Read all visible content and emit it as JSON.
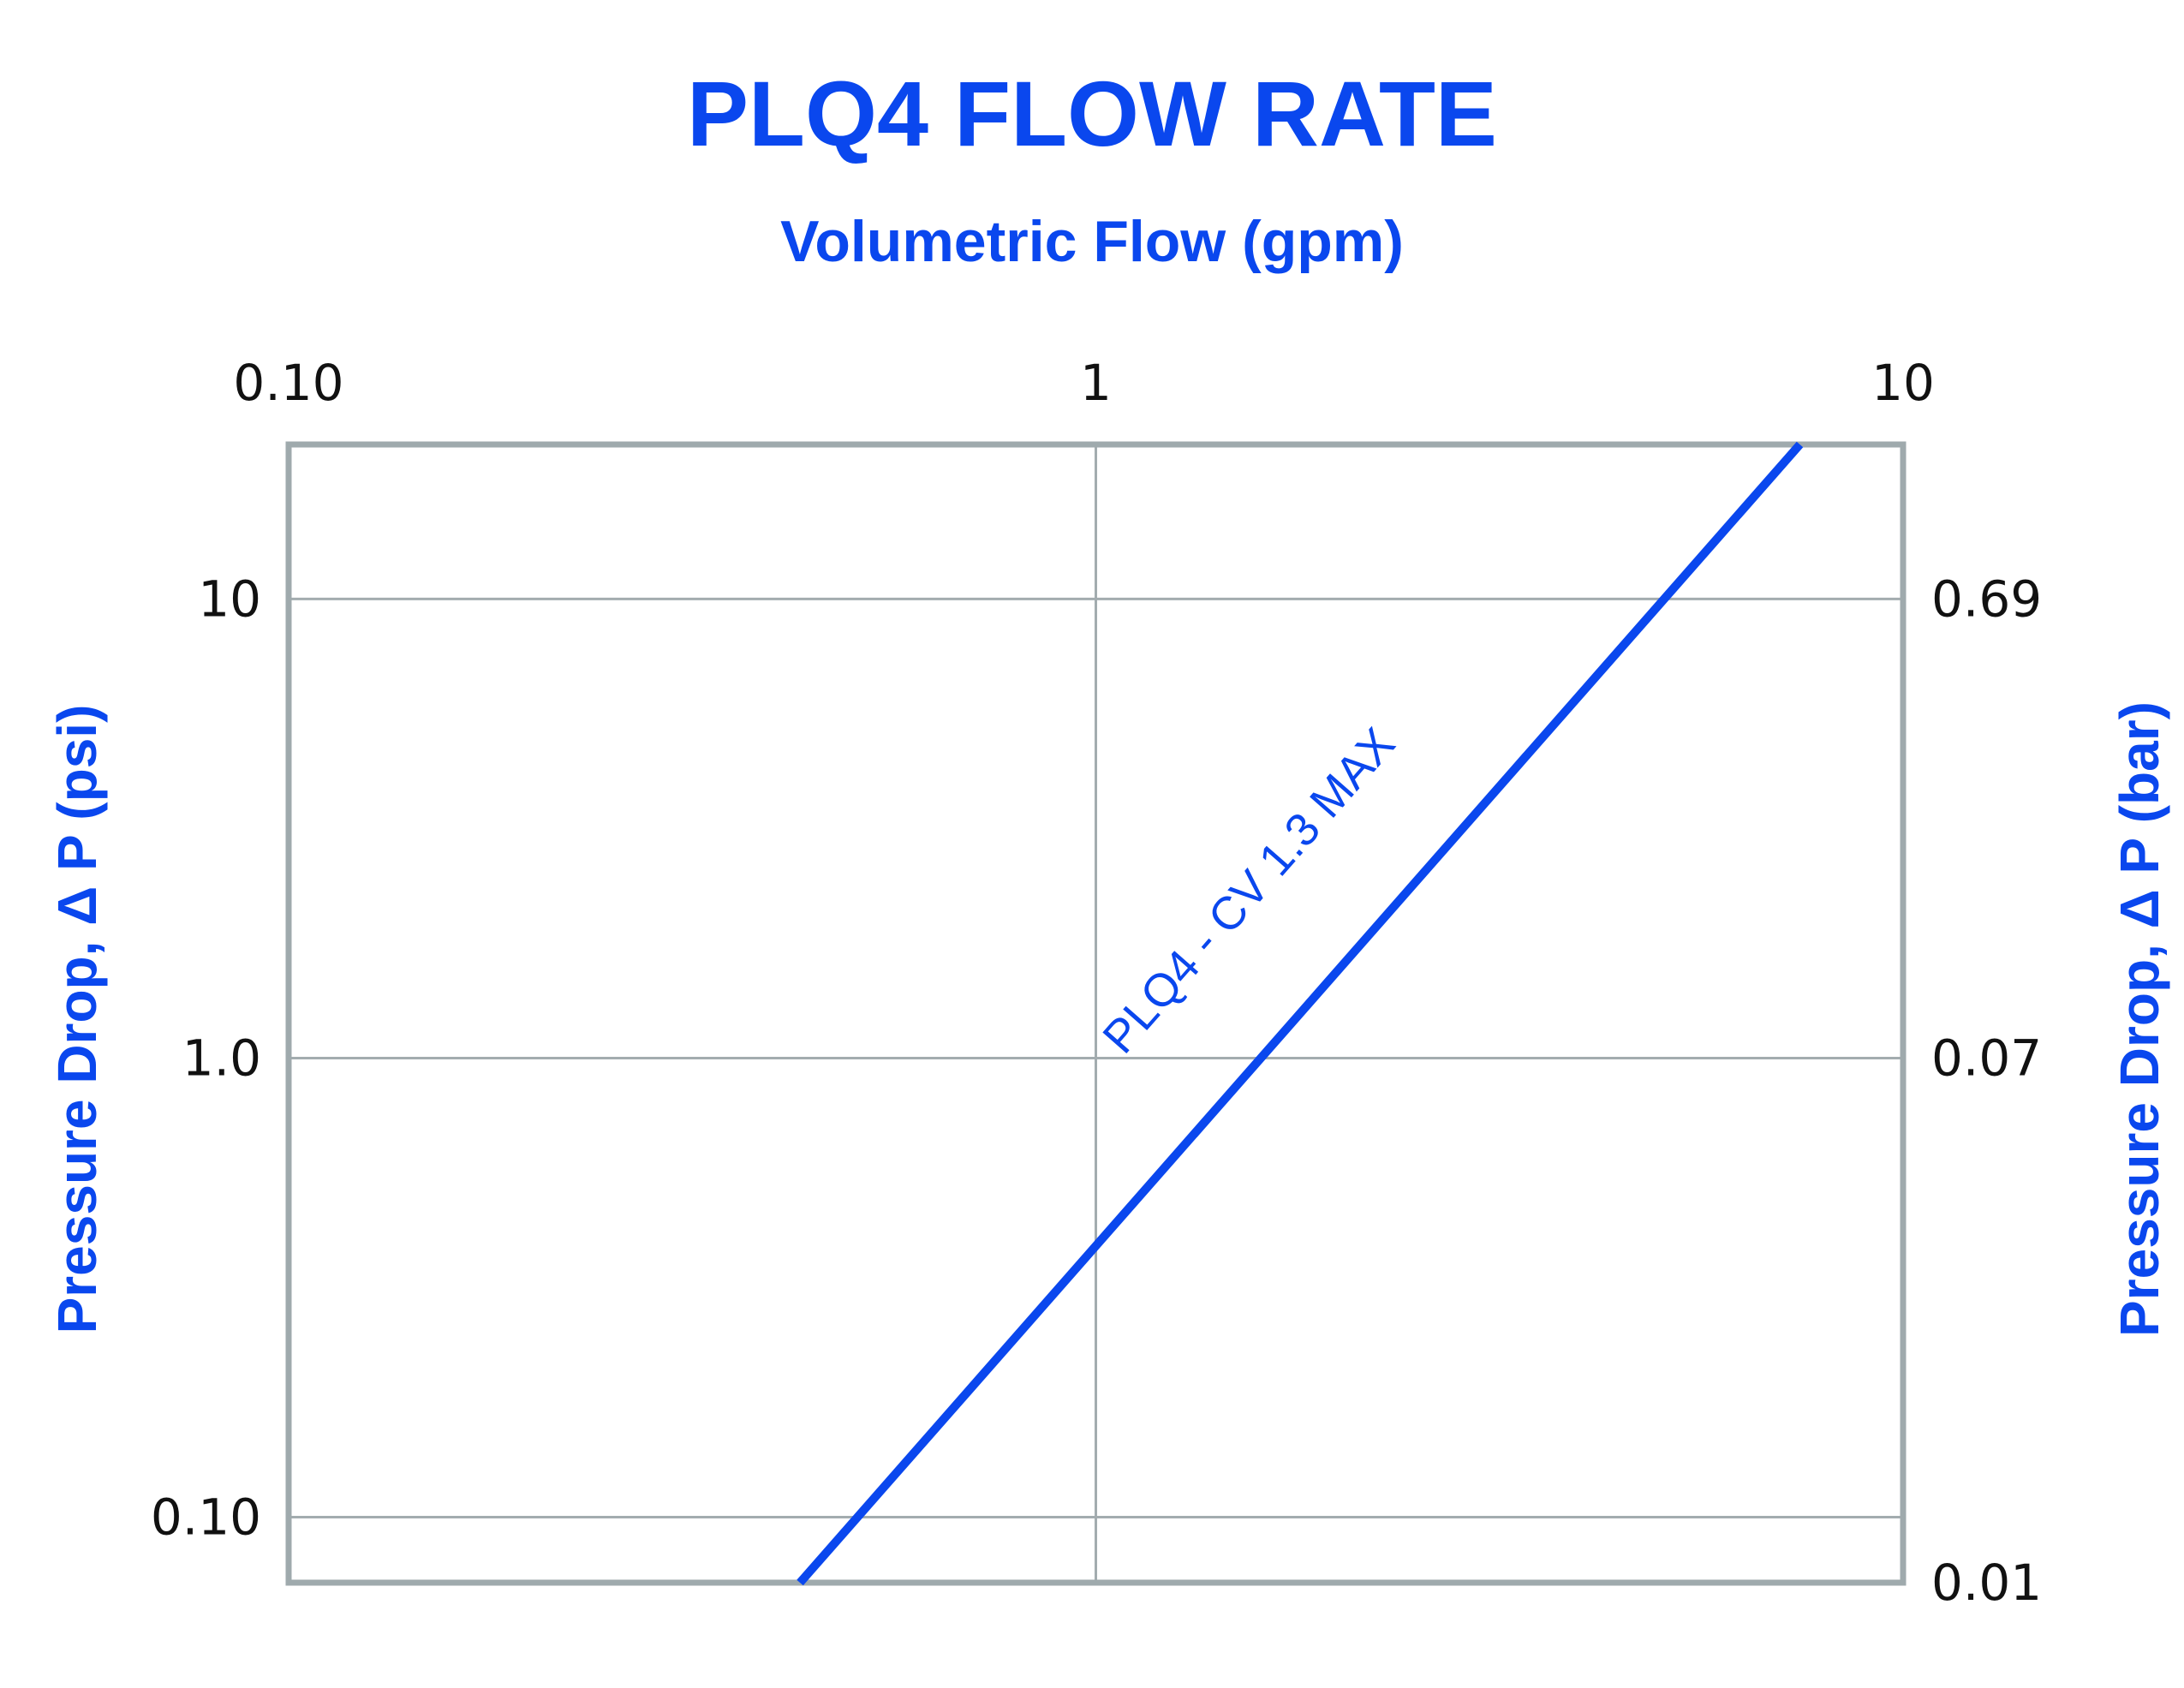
{
  "chart_data": {
    "type": "line",
    "title": "PLQ4 FLOW RATE",
    "xlabel": "Volumetric Flow (gpm)",
    "ylabel": "Pressure Drop, Δ P (psi)",
    "ylabel_right": "Pressure Drop, Δ P (bar)",
    "x_scale": "log",
    "y_scale": "log",
    "xlim": [
      0.1,
      10
    ],
    "ylim": [
      0.072,
      21.7
    ],
    "x_ticks": [
      {
        "value": 0.1,
        "label": "0.10"
      },
      {
        "value": 1,
        "label": "1"
      },
      {
        "value": 10,
        "label": "10"
      }
    ],
    "y_ticks_left": [
      {
        "value": 10,
        "label": "10"
      },
      {
        "value": 1,
        "label": "1.0"
      },
      {
        "value": 0.1,
        "label": "0.10"
      }
    ],
    "y_ticks_right": [
      {
        "value": 10,
        "label": "0.69"
      },
      {
        "value": 1,
        "label": "0.07"
      },
      {
        "value": 0.072,
        "label": "0.01"
      }
    ],
    "grid": true,
    "series": [
      {
        "x": [
          0.43,
          7.45
        ],
        "y": [
          0.072,
          21.7
        ],
        "color": "#0a47ee"
      }
    ],
    "annotations": [
      {
        "text": "PLQ4 - CV 1.3 MAX",
        "x": 1.6,
        "y": 2.2
      }
    ],
    "colors": {
      "accent": "#0a47ee",
      "frame": "#9faaad",
      "grid": "#a3acaf",
      "tick_text": "#111111"
    }
  }
}
